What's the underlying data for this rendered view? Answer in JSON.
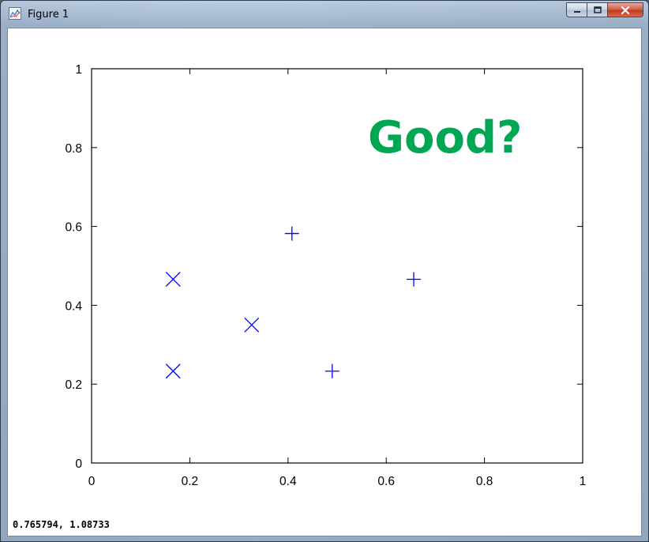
{
  "window": {
    "title": "Figure 1",
    "controls": {
      "minimize": "—",
      "maximize": "□",
      "close": "✕"
    }
  },
  "status_bar": {
    "coords": "0.765794,  1.08733"
  },
  "annotation": {
    "text": "Good?",
    "color": "#00a651"
  },
  "chart_data": {
    "type": "scatter",
    "title": "",
    "xlabel": "",
    "ylabel": "",
    "xlim": [
      0,
      1
    ],
    "ylim": [
      0,
      1
    ],
    "x_ticks": [
      "0",
      "0.2",
      "0.4",
      "0.6",
      "0.8",
      "1"
    ],
    "y_ticks": [
      "0",
      "0.2",
      "0.4",
      "0.6",
      "0.8",
      "1"
    ],
    "grid": false,
    "series": [
      {
        "marker": "x",
        "color": "#0000ff",
        "points": [
          {
            "x": 0.166,
            "y": 0.466
          },
          {
            "x": 0.166,
            "y": 0.233
          },
          {
            "x": 0.326,
            "y": 0.35
          }
        ]
      },
      {
        "marker": "+",
        "color": "#0000ff",
        "points": [
          {
            "x": 0.408,
            "y": 0.582
          },
          {
            "x": 0.656,
            "y": 0.466
          },
          {
            "x": 0.49,
            "y": 0.233
          }
        ]
      }
    ]
  }
}
